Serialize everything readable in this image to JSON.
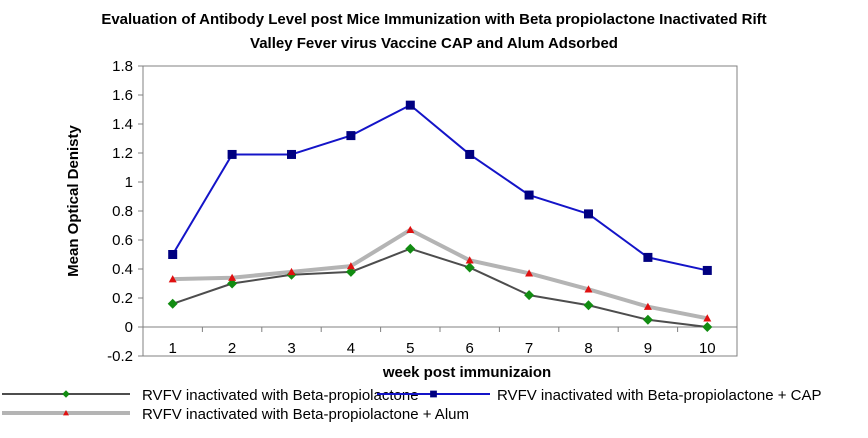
{
  "chart_data": {
    "type": "line",
    "title_line1": "Evaluation of Antibody Level post Mice  Immunization with Beta propiolactone  Inactivated Rift",
    "title_line2": "Valley Fever virus  Vaccine CAP and Alum  Adsorbed",
    "xlabel": "week post immunizaion",
    "ylabel": "Mean Optical Denisty",
    "x": [
      1,
      2,
      3,
      4,
      5,
      6,
      7,
      8,
      9,
      10
    ],
    "x_tick_labels": [
      "1",
      "2",
      "3",
      "4",
      "5",
      "6",
      "7",
      "8",
      "9",
      "10"
    ],
    "ylim": [
      -0.2,
      1.8
    ],
    "y_ticks": [
      -0.2,
      0,
      0.2,
      0.4,
      0.6,
      0.8,
      1,
      1.2,
      1.4,
      1.6,
      1.8
    ],
    "y_tick_labels": [
      "-0.2",
      "0",
      "0.2",
      "0.4",
      "0.6",
      "0.8",
      "1",
      "1.2",
      "1.4",
      "1.6",
      "1.8"
    ],
    "grid": false,
    "legend_position": "bottom",
    "series": [
      {
        "name": "RVFV inactivated with Beta-propiolactone",
        "values": [
          0.16,
          0.3,
          0.36,
          0.38,
          0.54,
          0.41,
          0.22,
          0.15,
          0.05,
          0.0
        ],
        "line_color": "#4d4d4d",
        "marker": "diamond",
        "marker_color": "#128c12"
      },
      {
        "name": "RVFV inactivated with Beta-propiolactone + CAP",
        "values": [
          0.5,
          1.19,
          1.19,
          1.32,
          1.53,
          1.19,
          0.91,
          0.78,
          0.48,
          0.39
        ],
        "line_color": "#1414c8",
        "marker": "square",
        "marker_color": "#000080"
      },
      {
        "name": "RVFV inactivated with Beta-propiolactone + Alum",
        "values": [
          0.33,
          0.34,
          0.38,
          0.42,
          0.67,
          0.46,
          0.37,
          0.26,
          0.14,
          0.06
        ],
        "line_color": "#b4b4b4",
        "marker": "triangle",
        "marker_color": "#e01010"
      }
    ]
  }
}
